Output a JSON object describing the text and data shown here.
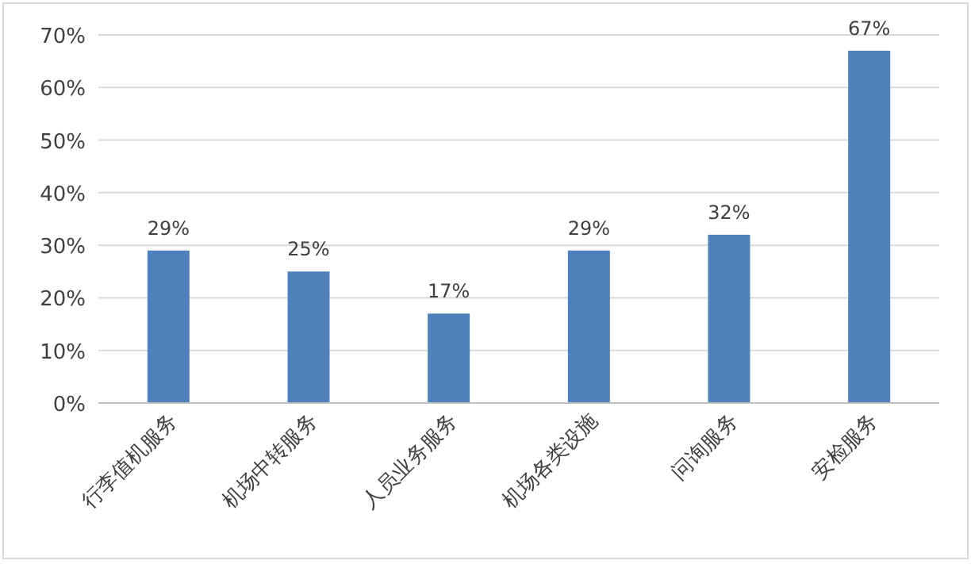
{
  "chart_data": {
    "type": "bar",
    "categories": [
      "行李值机服务",
      "机场中转服务",
      "人员业务服务",
      "机场各类设施",
      "问询服务",
      "安检服务"
    ],
    "values": [
      29,
      25,
      17,
      29,
      32,
      67
    ],
    "color": "#4f81bd",
    "value_labels": [
      "29%",
      "25%",
      "17%",
      "29%",
      "32%",
      "67%"
    ],
    "ylim": [
      0,
      70
    ],
    "yticks": [
      {
        "value": 0,
        "label": "0%"
      },
      {
        "value": 10,
        "label": "10%"
      },
      {
        "value": 20,
        "label": "20%"
      },
      {
        "value": 30,
        "label": "30%"
      },
      {
        "value": 40,
        "label": "40%"
      },
      {
        "value": 50,
        "label": "50%"
      },
      {
        "value": 60,
        "label": "60%"
      },
      {
        "value": 70,
        "label": "70%"
      }
    ],
    "grid": "y"
  }
}
